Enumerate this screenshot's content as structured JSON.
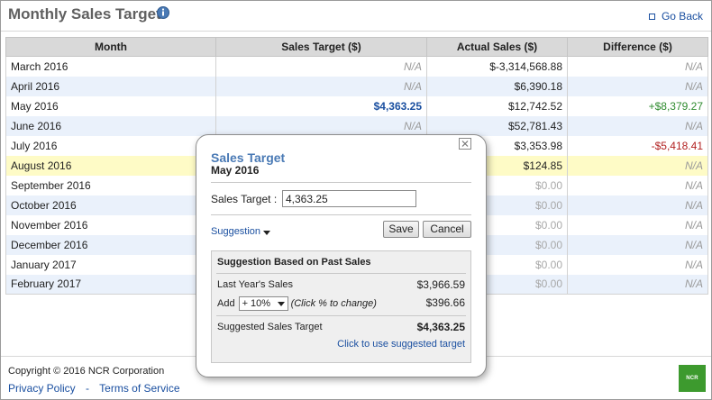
{
  "header": {
    "title": "Monthly Sales Target",
    "info_icon": "info-icon",
    "back_label": "Go Back"
  },
  "table": {
    "columns": [
      "Month",
      "Sales Target ($)",
      "Actual Sales ($)",
      "Difference ($)"
    ],
    "rows": [
      {
        "month": "March 2016",
        "target": "N/A",
        "actual": "$-3,314,568.88",
        "diff": "N/A"
      },
      {
        "month": "April 2016",
        "target": "N/A",
        "actual": "$6,390.18",
        "diff": "N/A"
      },
      {
        "month": "May 2016",
        "target": "$4,363.25",
        "actual": "$12,742.52",
        "diff": "+$8,379.27"
      },
      {
        "month": "June 2016",
        "target": "N/A",
        "actual": "$52,781.43",
        "diff": "N/A"
      },
      {
        "month": "July 2016",
        "target": "",
        "actual": "$3,353.98",
        "diff": "-$5,418.41"
      },
      {
        "month": "August 2016",
        "target": "",
        "actual": "$124.85",
        "diff": "N/A"
      },
      {
        "month": "September 2016",
        "target": "",
        "actual": "$0.00",
        "diff": "N/A"
      },
      {
        "month": "October 2016",
        "target": "",
        "actual": "$0.00",
        "diff": "N/A"
      },
      {
        "month": "November 2016",
        "target": "",
        "actual": "$0.00",
        "diff": "N/A"
      },
      {
        "month": "December 2016",
        "target": "",
        "actual": "$0.00",
        "diff": "N/A"
      },
      {
        "month": "January 2017",
        "target": "",
        "actual": "$0.00",
        "diff": "N/A"
      },
      {
        "month": "February 2017",
        "target": "",
        "actual": "$0.00",
        "diff": "N/A"
      }
    ]
  },
  "popup": {
    "title": "Sales Target",
    "subtitle": "May 2016",
    "close_icon": "close-icon",
    "field_label": "Sales Target :",
    "field_value": "4,363.25",
    "suggestion_toggle": "Suggestion",
    "save_label": "Save",
    "cancel_label": "Cancel",
    "suggestion": {
      "heading": "Suggestion Based on Past Sales",
      "last_year_label": "Last Year's Sales",
      "last_year_value": "$3,966.59",
      "add_label": "Add",
      "percent_selected": "+ 10%",
      "percent_hint": "(Click % to change)",
      "add_value": "$396.66",
      "suggested_label": "Suggested Sales Target",
      "suggested_value": "$4,363.25",
      "use_link": "Click to use suggested target"
    }
  },
  "footer": {
    "copyright": "Copyright © 2016 NCR Corporation",
    "privacy_label": "Privacy Policy",
    "separator": "-",
    "terms_label": "Terms of Service",
    "logo_text": "NCR"
  },
  "colors": {
    "accent_blue": "#1a4fa0",
    "positive": "#2e8b2e",
    "negative": "#b22222",
    "highlight_row": "#fefbc6",
    "logo_green": "#3d9a2e"
  }
}
